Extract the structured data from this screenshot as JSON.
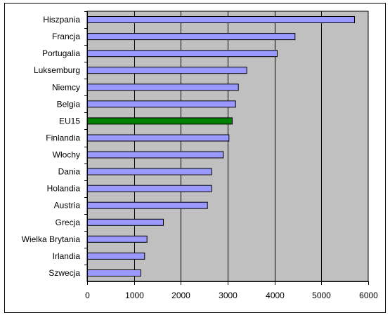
{
  "chart_data": {
    "type": "bar",
    "orientation": "horizontal",
    "title": "",
    "xlabel": "",
    "ylabel": "",
    "categories": [
      "Hiszpania",
      "Francja",
      "Portugalia",
      "Luksemburg",
      "Niemcy",
      "Belgia",
      "EU15",
      "Finlandia",
      "Włochy",
      "Dania",
      "Holandia",
      "Austria",
      "Grecja",
      "Wielka Brytania",
      "Irlandia",
      "Szwecja"
    ],
    "values": [
      5700,
      4430,
      4050,
      3400,
      3220,
      3160,
      3090,
      3020,
      2900,
      2650,
      2650,
      2560,
      1620,
      1270,
      1220,
      1140
    ],
    "highlight_category": "EU15",
    "xlim": [
      0,
      6000
    ],
    "xticks": [
      0,
      1000,
      2000,
      3000,
      4000,
      5000,
      6000
    ],
    "grid": "vertical",
    "legend": "none",
    "colors": {
      "bar": "#9999ff",
      "highlight": "#008000",
      "plot_background": "#c0c0c0",
      "gridline": "#000000",
      "border": "#000000"
    }
  }
}
